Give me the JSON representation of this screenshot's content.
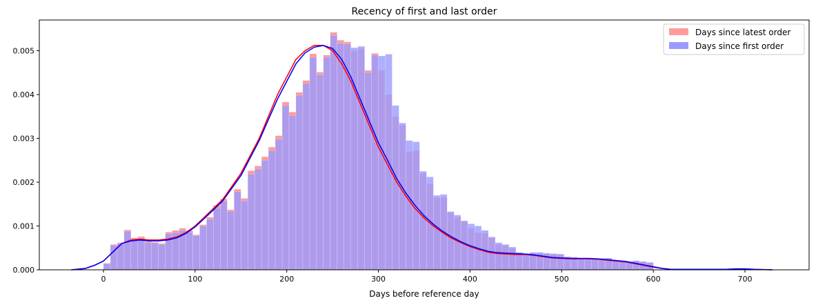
{
  "chart_data": {
    "type": "bar",
    "title": "Recency of first and last order",
    "xlabel": "Days before reference day",
    "ylabel": "",
    "xlim": [
      -70,
      770
    ],
    "ylim": [
      0,
      0.0057
    ],
    "xticks": [
      0,
      100,
      200,
      300,
      400,
      500,
      600,
      700
    ],
    "yticks": [
      0.0,
      0.001,
      0.002,
      0.003,
      0.004,
      0.005
    ],
    "ytick_labels": [
      "0.000",
      "0.001",
      "0.002",
      "0.003",
      "0.004",
      "0.005"
    ],
    "legend_position": "top-right",
    "grid": false,
    "bin_edges": [
      0,
      7.5,
      15,
      22.5,
      30,
      37.5,
      45,
      52.5,
      60,
      67.5,
      75,
      82.5,
      90,
      97.5,
      105,
      112.5,
      120,
      127.5,
      135,
      142.5,
      150,
      157.5,
      165,
      172.5,
      180,
      187.5,
      195,
      202.5,
      210,
      217.5,
      225,
      232.5,
      240,
      247.5,
      255,
      262.5,
      270,
      277.5,
      285,
      292.5,
      300,
      307.5,
      315,
      322.5,
      330,
      337.5,
      345,
      352.5,
      360,
      367.5,
      375,
      382.5,
      390,
      397.5,
      405,
      412.5,
      420,
      427.5,
      435,
      442.5,
      450,
      457.5,
      465,
      472.5,
      480,
      487.5,
      495,
      502.5,
      510,
      517.5,
      525,
      532.5,
      540,
      547.5,
      555,
      562.5,
      570,
      577.5,
      585,
      592.5,
      600
    ],
    "series": [
      {
        "name": "Days since latest order",
        "bar_color": "#ff9b9b",
        "line_color": "#ff0000",
        "values": [
          0.00015,
          0.00058,
          0.00062,
          0.00091,
          0.00073,
          0.00076,
          0.00065,
          0.00063,
          0.0006,
          0.00086,
          0.0009,
          0.00095,
          0.0009,
          0.0008,
          0.00103,
          0.0012,
          0.00147,
          0.00162,
          0.00137,
          0.00184,
          0.00163,
          0.00226,
          0.00237,
          0.00258,
          0.0028,
          0.00306,
          0.00383,
          0.0036,
          0.00405,
          0.00432,
          0.00493,
          0.00451,
          0.0049,
          0.00542,
          0.00524,
          0.0052,
          0.005,
          0.00505,
          0.00455,
          0.00494,
          0.00455,
          0.004,
          0.0035,
          0.0033,
          0.0027,
          0.00272,
          0.0022,
          0.00196,
          0.00165,
          0.00165,
          0.0013,
          0.0012,
          0.0011,
          0.00095,
          0.00085,
          0.00083,
          0.00073,
          0.00058,
          0.00055,
          0.00049,
          0.00038,
          0.00035,
          0.00038,
          0.00038,
          0.00037,
          0.00036,
          0.00035,
          0.00029,
          0.00028,
          0.00024,
          0.00024,
          0.00024,
          0.00025,
          0.00026,
          0.0002,
          0.0002,
          0.00018,
          0.0002,
          0.00018,
          0.00016
        ]
      },
      {
        "name": "Days since first order",
        "bar_color": "#9b9bff",
        "line_color": "#0000ff",
        "values": [
          0.00014,
          0.00056,
          0.0006,
          0.00088,
          0.0007,
          0.00072,
          0.00062,
          0.00062,
          0.00058,
          0.00082,
          0.00085,
          0.0009,
          0.00086,
          0.00078,
          0.001,
          0.00115,
          0.0014,
          0.00156,
          0.00133,
          0.00178,
          0.00157,
          0.00218,
          0.0023,
          0.0025,
          0.00272,
          0.00298,
          0.00375,
          0.00352,
          0.00398,
          0.00425,
          0.00485,
          0.00445,
          0.00485,
          0.00535,
          0.00517,
          0.00515,
          0.00507,
          0.0051,
          0.0045,
          0.0049,
          0.00488,
          0.00492,
          0.00375,
          0.00335,
          0.00295,
          0.00292,
          0.00225,
          0.00212,
          0.0017,
          0.00172,
          0.00133,
          0.00125,
          0.00112,
          0.00105,
          0.001,
          0.0009,
          0.00075,
          0.00062,
          0.00058,
          0.00052,
          0.0004,
          0.00037,
          0.0004,
          0.0004,
          0.00038,
          0.00037,
          0.00036,
          0.0003,
          0.00029,
          0.00025,
          0.00025,
          0.00025,
          0.00026,
          0.00027,
          0.00022,
          0.00021,
          0.00019,
          0.00021,
          0.00019,
          0.00017
        ]
      }
    ],
    "kde_x": [
      -35,
      -20,
      -10,
      0,
      10,
      20,
      30,
      40,
      50,
      60,
      70,
      80,
      90,
      100,
      110,
      120,
      130,
      140,
      150,
      160,
      170,
      180,
      190,
      200,
      210,
      220,
      230,
      240,
      250,
      260,
      270,
      280,
      290,
      300,
      310,
      320,
      330,
      340,
      350,
      360,
      370,
      380,
      390,
      400,
      410,
      420,
      430,
      440,
      450,
      460,
      470,
      480,
      490,
      500,
      510,
      520,
      530,
      540,
      550,
      560,
      570,
      580,
      590,
      600,
      610,
      620,
      640,
      660,
      680,
      690,
      700,
      710,
      730
    ],
    "kde_latest": [
      0.0,
      3e-05,
      0.0001,
      0.0002,
      0.0004,
      0.0006,
      0.00068,
      0.0007,
      0.00068,
      0.00068,
      0.0007,
      0.00075,
      0.00085,
      0.001,
      0.0012,
      0.0014,
      0.0016,
      0.0019,
      0.0022,
      0.0026,
      0.003,
      0.0035,
      0.004,
      0.0044,
      0.0048,
      0.005,
      0.00512,
      0.00512,
      0.005,
      0.0047,
      0.0043,
      0.0038,
      0.0033,
      0.0028,
      0.0024,
      0.002,
      0.00168,
      0.0014,
      0.00118,
      0.001,
      0.00085,
      0.00072,
      0.00062,
      0.00053,
      0.00046,
      0.0004,
      0.00037,
      0.00036,
      0.00035,
      0.00035,
      0.00033,
      0.0003,
      0.00027,
      0.00026,
      0.00025,
      0.00025,
      0.00025,
      0.00024,
      0.00022,
      0.0002,
      0.00018,
      0.00014,
      0.0001,
      6e-05,
      3e-05,
      1e-05,
      1e-05,
      1e-05,
      1e-05,
      2e-05,
      2e-05,
      1e-05,
      0.0
    ],
    "kde_first": [
      0.0,
      3e-05,
      0.0001,
      0.0002,
      0.0004,
      0.0006,
      0.00066,
      0.00068,
      0.00066,
      0.00066,
      0.00068,
      0.00073,
      0.00083,
      0.00098,
      0.00117,
      0.00137,
      0.00157,
      0.00186,
      0.00215,
      0.00255,
      0.00295,
      0.00343,
      0.0039,
      0.0043,
      0.0047,
      0.00495,
      0.00508,
      0.00512,
      0.00505,
      0.0048,
      0.0044,
      0.0039,
      0.0034,
      0.0029,
      0.0025,
      0.00208,
      0.00175,
      0.00147,
      0.00123,
      0.00104,
      0.00088,
      0.00075,
      0.00064,
      0.00055,
      0.00048,
      0.00042,
      0.00039,
      0.00038,
      0.00037,
      0.00036,
      0.00034,
      0.00031,
      0.00028,
      0.00027,
      0.00026,
      0.00026,
      0.00026,
      0.00025,
      0.00023,
      0.00021,
      0.00019,
      0.00015,
      0.00011,
      7e-05,
      3e-05,
      1e-05,
      1e-05,
      1e-05,
      1e-05,
      2e-05,
      2e-05,
      1e-05,
      0.0
    ]
  }
}
